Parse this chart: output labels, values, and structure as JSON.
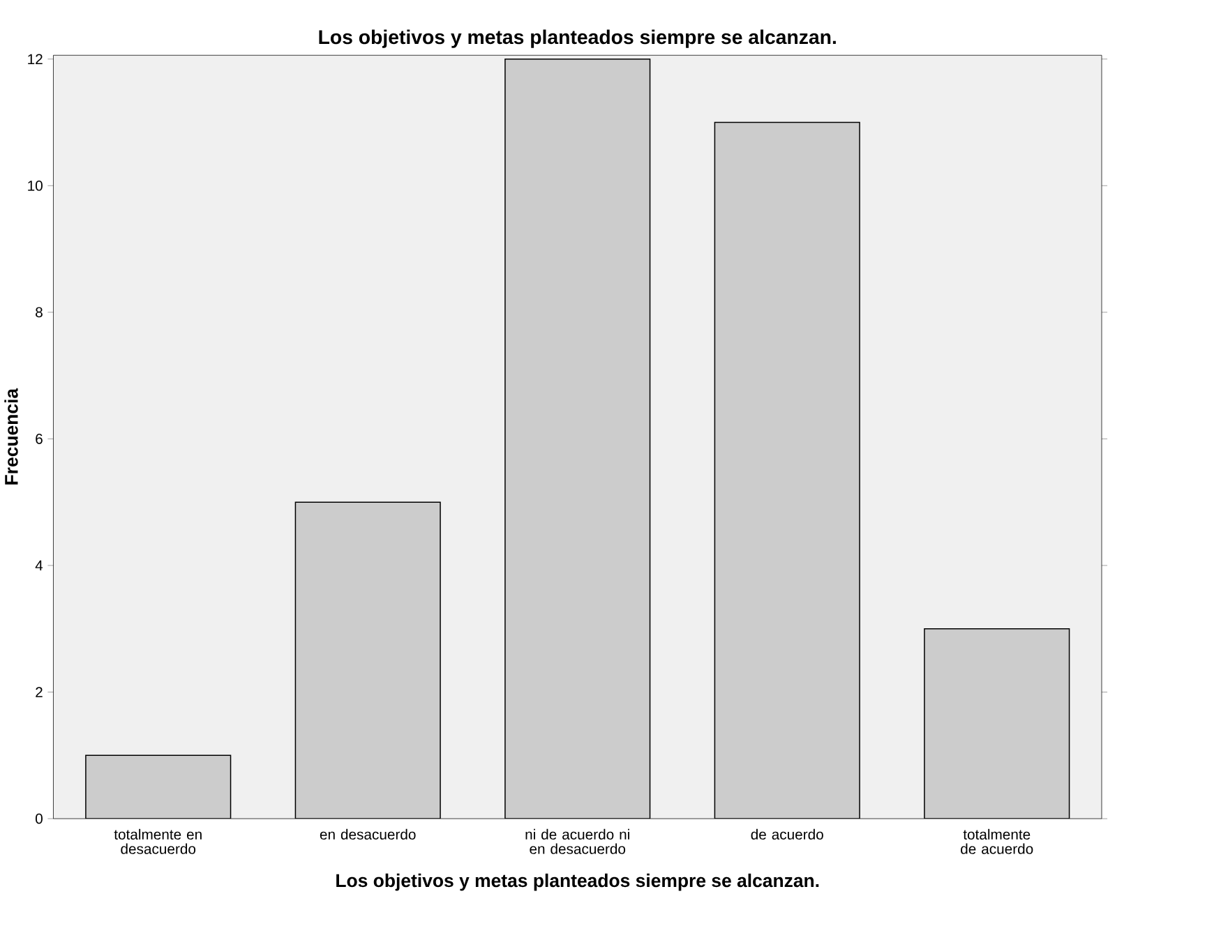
{
  "chart_data": {
    "type": "bar",
    "title": "Los objetivos y metas planteados siempre se alcanzan.",
    "xlabel": "Los objetivos y metas planteados siempre se alcanzan.",
    "ylabel": "Frecuencia",
    "categories": [
      "totalmente en desacuerdo",
      "en desacuerdo",
      "ni de acuerdo ni en desacuerdo",
      "de acuerdo",
      "totalmente de acuerdo"
    ],
    "values": [
      1,
      5,
      12,
      11,
      3
    ],
    "color": "#cccccc",
    "ylim": [
      0,
      12.06
    ],
    "yticks": [
      0,
      2,
      4,
      6,
      8,
      10,
      12
    ]
  }
}
